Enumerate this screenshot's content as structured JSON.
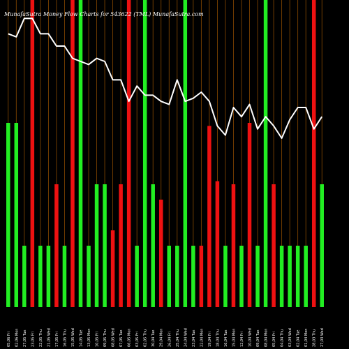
{
  "chart_data": {
    "type": "bar",
    "title": "MunafaSutra  Money Flow  Charts for 543622                    (TML) MunafaSutra.com",
    "colors": {
      "background": "#000000",
      "up": "#22ee22",
      "down": "#ee1111",
      "line": "#ffffff",
      "grid": "#8a4a00"
    },
    "ylim": [
      0,
      100
    ],
    "categories": [
      "05,06 Fri",
      "02,06 Mon",
      "27,05 Tue",
      "23,05 Fri",
      "22,05 Thu",
      "21,05 Wed",
      "17,05 Fri",
      "16,05 Thu",
      "15,05 Wed",
      "14,05 Tue",
      "13,05 Mon",
      "10,05 Fri",
      "09,05 Thu",
      "08,05 Wed",
      "07,05 Tue",
      "06,05 Mon",
      "03,05 Fri",
      "02,05 Thu",
      "30,04 Tue",
      "29,04 Mon",
      "26,04 Fri",
      "25,04 Thu",
      "24,04 Wed",
      "23,04 Tue",
      "22,04 Mon",
      "19,04 Fri",
      "18,04 Thu",
      "16,04 Tue",
      "15,04 Mon",
      "12,04 Fri",
      "10,04 Wed",
      "09,04 Tue",
      "08,04 Mon",
      "05,04 Fri",
      "04,04 Thu",
      "03,04 Wed",
      "02,04 Tue",
      "01,04 Mon",
      "28,03 Thu",
      "27,03 Wed"
    ],
    "bars": [
      {
        "value": 60,
        "color": "up"
      },
      {
        "value": 60,
        "color": "up"
      },
      {
        "value": 20,
        "color": "up"
      },
      {
        "value": 100,
        "color": "down"
      },
      {
        "value": 20,
        "color": "up"
      },
      {
        "value": 20,
        "color": "up"
      },
      {
        "value": 40,
        "color": "down"
      },
      {
        "value": 20,
        "color": "up"
      },
      {
        "value": 100,
        "color": "down"
      },
      {
        "value": 100,
        "color": "up"
      },
      {
        "value": 20,
        "color": "up"
      },
      {
        "value": 40,
        "color": "up"
      },
      {
        "value": 40,
        "color": "up"
      },
      {
        "value": 25,
        "color": "down"
      },
      {
        "value": 40,
        "color": "down"
      },
      {
        "value": 100,
        "color": "down"
      },
      {
        "value": 20,
        "color": "up"
      },
      {
        "value": 100,
        "color": "up"
      },
      {
        "value": 40,
        "color": "up"
      },
      {
        "value": 35,
        "color": "down"
      },
      {
        "value": 20,
        "color": "up"
      },
      {
        "value": 20,
        "color": "up"
      },
      {
        "value": 100,
        "color": "up"
      },
      {
        "value": 20,
        "color": "up"
      },
      {
        "value": 20,
        "color": "down"
      },
      {
        "value": 59,
        "color": "down"
      },
      {
        "value": 41,
        "color": "down"
      },
      {
        "value": 20,
        "color": "up"
      },
      {
        "value": 40,
        "color": "down"
      },
      {
        "value": 20,
        "color": "up"
      },
      {
        "value": 60,
        "color": "down"
      },
      {
        "value": 20,
        "color": "up"
      },
      {
        "value": 100,
        "color": "up"
      },
      {
        "value": 40,
        "color": "down"
      },
      {
        "value": 20,
        "color": "up"
      },
      {
        "value": 20,
        "color": "up"
      },
      {
        "value": 20,
        "color": "up"
      },
      {
        "value": 20,
        "color": "up"
      },
      {
        "value": 100,
        "color": "down"
      },
      {
        "value": 40,
        "color": "up"
      }
    ],
    "line": [
      89,
      88,
      94,
      94,
      89,
      89,
      85,
      85,
      81,
      80,
      79,
      81,
      80,
      74,
      74,
      67,
      72,
      69,
      69,
      67,
      66,
      74,
      67,
      68,
      70,
      67,
      59,
      56,
      65,
      62,
      66,
      58,
      62,
      59,
      55,
      61,
      65,
      65,
      58,
      62
    ]
  }
}
